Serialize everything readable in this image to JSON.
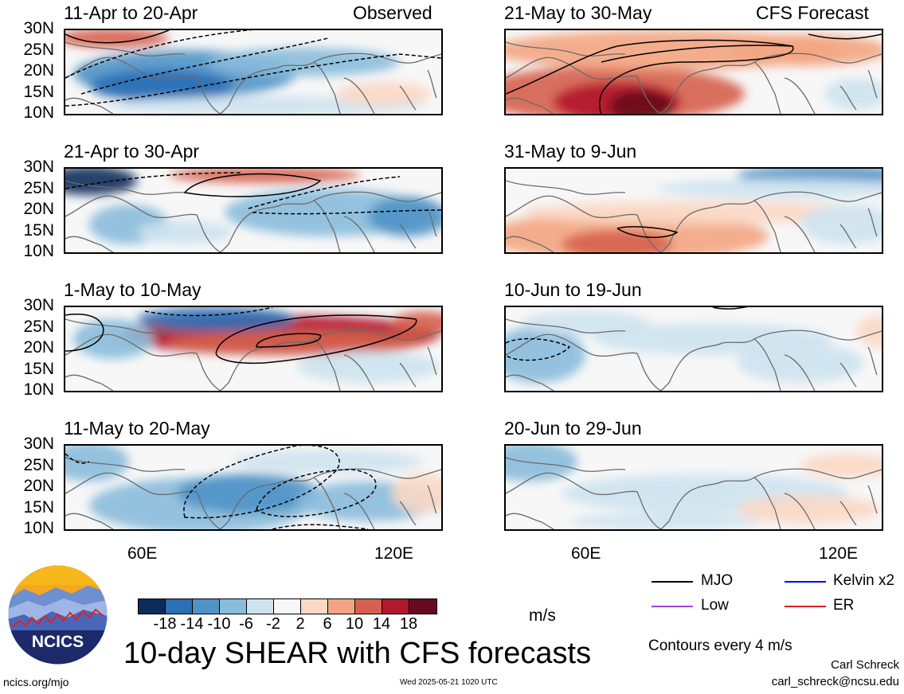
{
  "chart_data": {
    "type": "heatmap",
    "title": "10-day SHEAR with CFS forecasts",
    "colorbar": {
      "units": "m/s",
      "ticks": [
        "-18",
        "-14",
        "-10",
        "-6",
        "-2",
        "2",
        "6",
        "10",
        "14",
        "18"
      ],
      "colors": [
        "#0b2b5c",
        "#2b6fb5",
        "#4f93c7",
        "#89bddb",
        "#cde3f0",
        "#f7f7f7",
        "#fbd8c4",
        "#f3a582",
        "#d6604d",
        "#b2182b",
        "#670a1e"
      ]
    },
    "latitude_ticks": [
      "30N",
      "25N",
      "20N",
      "15N",
      "10N"
    ],
    "longitude_ticks": [
      "60E",
      "120E"
    ],
    "panel_group_labels": {
      "observed": "Observed",
      "forecast": "CFS Forecast"
    },
    "panels": [
      {
        "period": "11-Apr to 20-Apr",
        "source": "Observed"
      },
      {
        "period": "21-Apr to 30-Apr",
        "source": "Observed"
      },
      {
        "period": "1-May to 10-May",
        "source": "Observed"
      },
      {
        "period": "11-May to 20-May",
        "source": "Observed"
      },
      {
        "period": "21-May to 30-May",
        "source": "CFS Forecast"
      },
      {
        "period": "31-May to 9-Jun",
        "source": "CFS Forecast"
      },
      {
        "period": "10-Jun to 19-Jun",
        "source": "CFS Forecast"
      },
      {
        "period": "20-Jun to 29-Jun",
        "source": "CFS Forecast"
      }
    ],
    "legend": [
      {
        "label": "MJO",
        "color": "#000000"
      },
      {
        "label": "Kelvin x2",
        "color": "#0000ff"
      },
      {
        "label": "Low",
        "color": "#a040e0"
      },
      {
        "label": "ER",
        "color": "#e02020"
      }
    ],
    "contour_note": "Contours every 4 m/s"
  },
  "footer": {
    "logo_text": "NCICS",
    "url": "ncics.org/mjo",
    "timestamp": "Wed 2025-05-21 1020 UTC",
    "author": "Carl Schreck",
    "email": "carl_schreck@ncsu.edu"
  }
}
